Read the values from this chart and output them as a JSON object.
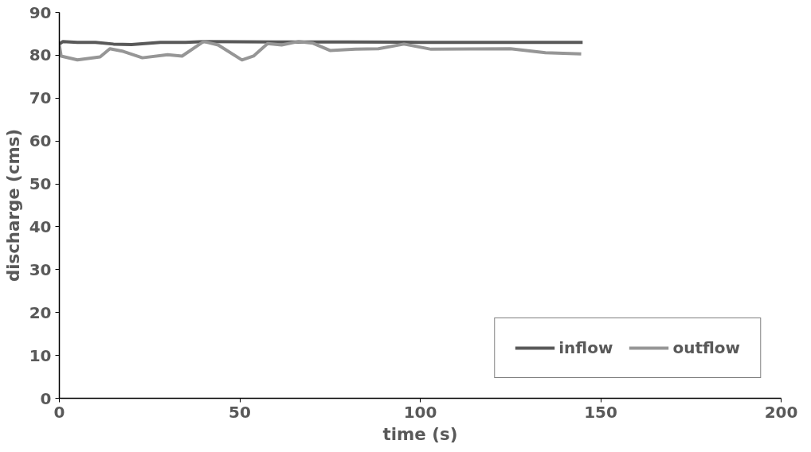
{
  "chart_data": {
    "type": "line",
    "xlabel": "time (s)",
    "ylabel": "discharge (cms)",
    "xlim": [
      0,
      200
    ],
    "xticks": [
      0,
      50,
      100,
      150,
      200
    ],
    "ylim": [
      0,
      90
    ],
    "yticks": [
      0,
      10,
      20,
      30,
      40,
      50,
      60,
      70,
      80,
      90
    ],
    "grid": false,
    "legend": "bottom right",
    "marker": "none",
    "line_style": "solid",
    "series": [
      {
        "name": "inflow",
        "color": "#595959",
        "x": [
          0,
          1,
          5,
          10,
          15,
          20,
          28,
          35,
          40,
          60,
          80,
          100,
          120,
          145
        ],
        "values": [
          82.6,
          83.2,
          83.0,
          83.0,
          82.6,
          82.5,
          83.0,
          83.0,
          83.2,
          83.1,
          83.1,
          83.0,
          83.0,
          83.0
        ]
      },
      {
        "name": "outflow",
        "color": "#969696",
        "x": [
          0,
          0.5,
          5,
          11.3,
          14,
          17.7,
          23,
          30,
          34,
          40,
          44,
          50.6,
          53.8,
          57.7,
          61.6,
          66.3,
          70.3,
          75,
          82,
          88.4,
          95.5,
          103,
          125,
          134.7,
          144.6
        ],
        "values": [
          82.4,
          79.8,
          78.9,
          79.6,
          81.5,
          80.9,
          79.4,
          80.1,
          79.8,
          83.2,
          82.4,
          78.9,
          79.8,
          82.7,
          82.4,
          83.2,
          82.8,
          81.1,
          81.4,
          81.5,
          82.6,
          81.4,
          81.5,
          80.6,
          80.3
        ]
      }
    ]
  }
}
